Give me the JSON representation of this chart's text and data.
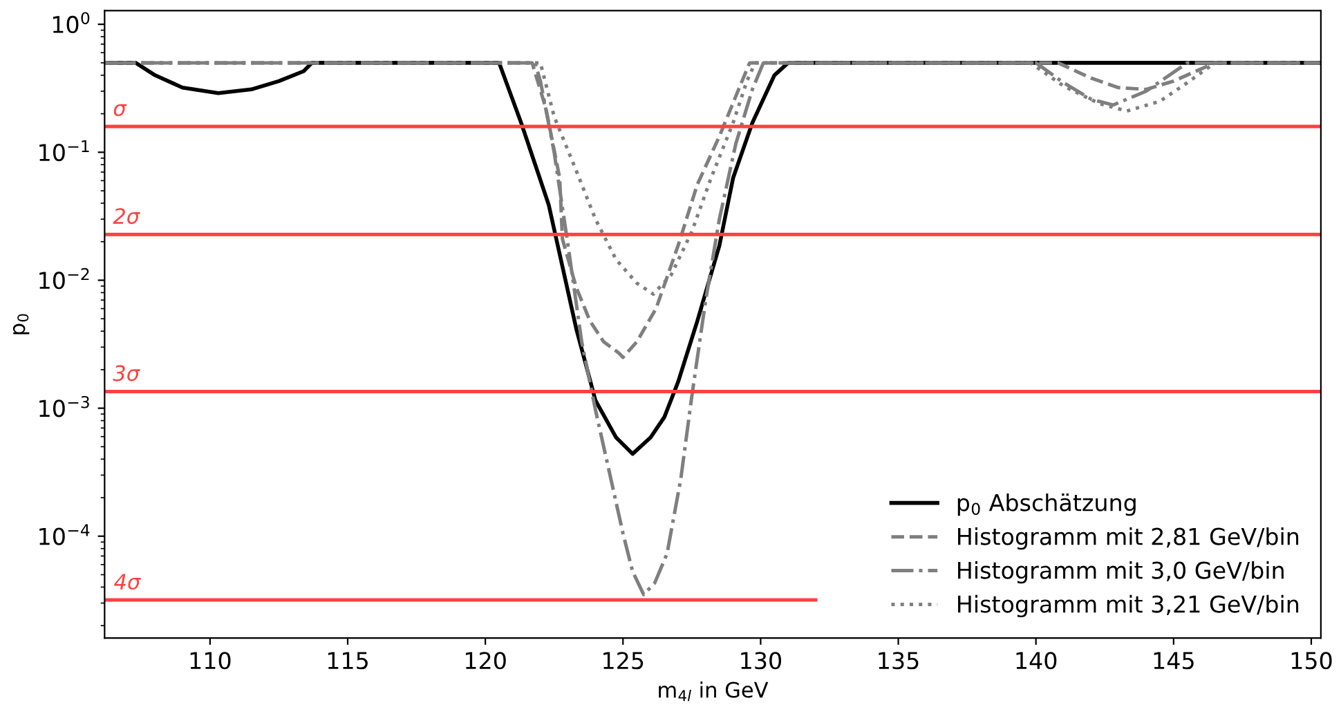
{
  "chart_data": {
    "type": "line",
    "xlabel": "m$_{4l}$ in GeV",
    "ylabel": "p$_{0}$",
    "log": "y",
    "xlim": [
      106.17,
      150.35
    ],
    "ylim": [
      1.6e-05,
      1.28
    ],
    "xticks": [
      110,
      115,
      120,
      125,
      130,
      135,
      140,
      145,
      150
    ],
    "yticks": [
      {
        "value": 1,
        "label": "10$^{0}$"
      },
      {
        "value": 0.1,
        "label": "10$^{−1}$"
      },
      {
        "value": 0.01,
        "label": "10$^{−2}$"
      },
      {
        "value": 0.001,
        "label": "10$^{−3}$"
      },
      {
        "value": 0.0001,
        "label": "10$^{−4}$"
      }
    ],
    "grid": false,
    "legend": "bottom right",
    "ref_lines": [
      {
        "axis": "y",
        "value": 0.159,
        "label": "σ",
        "color": "#ff4040"
      },
      {
        "axis": "y",
        "value": 0.0228,
        "label": "2σ",
        "color": "#ff4040"
      },
      {
        "axis": "y",
        "value": 0.00135,
        "label": "3σ",
        "color": "#ff4040"
      }
    ],
    "annotations": [
      {
        "text": "4σ",
        "x": 106.5,
        "y": 3.17e-05
      }
    ],
    "series": [
      {
        "color": "#ff4040",
        "line_style": "solid",
        "x": [
          106.17,
          132.0
        ],
        "values": [
          3.17e-05,
          3.17e-05
        ]
      },
      {
        "name": "p$_{0}$ Abschätzung",
        "color": "#000000",
        "line_style": "solid",
        "x": [
          106.17,
          107.3,
          108.0,
          109.0,
          110.3,
          111.5,
          112.5,
          113.4,
          113.7,
          120.5,
          121.3,
          122.3,
          123.3,
          124.0,
          124.75,
          125.35,
          126.0,
          126.5,
          127.0,
          127.7,
          128.5,
          129.0,
          129.7,
          130.5,
          131.0,
          150.35
        ],
        "values": [
          0.5,
          0.5,
          0.4,
          0.32,
          0.29,
          0.31,
          0.36,
          0.43,
          0.5,
          0.5,
          0.17,
          0.039,
          0.0042,
          0.00115,
          0.00059,
          0.00044,
          0.00059,
          0.00085,
          0.0016,
          0.0048,
          0.0186,
          0.063,
          0.17,
          0.4,
          0.5,
          0.5
        ]
      },
      {
        "name": "Histogramm mit 2,81 GeV/bin",
        "color": "#7f7f7f",
        "line_style": "dashed",
        "x": [
          106.17,
          121.7,
          122.2,
          122.7,
          122.8,
          123.3,
          123.8,
          124.3,
          124.85,
          125.0,
          125.5,
          126.2,
          127.0,
          127.7,
          128.5,
          129.2,
          129.6,
          140.8,
          142.0,
          143.0,
          144.0,
          145.0,
          146.5,
          150.35
        ],
        "values": [
          0.5,
          0.5,
          0.22,
          0.063,
          0.021,
          0.0088,
          0.0048,
          0.0033,
          0.0027,
          0.0025,
          0.0033,
          0.006,
          0.0186,
          0.056,
          0.133,
          0.31,
          0.5,
          0.5,
          0.38,
          0.32,
          0.31,
          0.36,
          0.5,
          0.5
        ]
      },
      {
        "name": "Histogramm mit 3,0 GeV/bin",
        "color": "#7f7f7f",
        "line_style": "dashdot",
        "x": [
          106.17,
          121.8,
          122.0,
          122.5,
          123.0,
          123.5,
          124.0,
          124.5,
          125.0,
          125.35,
          125.75,
          126.15,
          126.6,
          127.1,
          127.5,
          128.0,
          128.5,
          129.1,
          129.7,
          130.1,
          140.0,
          141.0,
          142.0,
          142.8,
          144.0,
          145.5,
          150.35
        ],
        "values": [
          0.5,
          0.5,
          0.36,
          0.1,
          0.019,
          0.0033,
          0.00097,
          0.00032,
          0.000105,
          5.3e-05,
          3.5e-05,
          4.3e-05,
          7.3e-05,
          0.00028,
          0.00124,
          0.0069,
          0.03,
          0.117,
          0.31,
          0.5,
          0.5,
          0.35,
          0.26,
          0.234,
          0.3,
          0.5,
          0.5
        ]
      },
      {
        "name": "Histogramm mit 3,21 GeV/bin",
        "color": "#7f7f7f",
        "line_style": "dotted",
        "x": [
          106.17,
          122.0,
          122.5,
          123.3,
          124.0,
          124.75,
          125.5,
          126.1,
          126.75,
          127.5,
          128.2,
          129.0,
          129.5,
          129.8,
          139.8,
          141.0,
          142.3,
          143.3,
          144.5,
          145.5,
          146.5,
          150.35
        ],
        "values": [
          0.5,
          0.5,
          0.19,
          0.072,
          0.03,
          0.0145,
          0.0095,
          0.0078,
          0.011,
          0.024,
          0.063,
          0.17,
          0.36,
          0.5,
          0.5,
          0.33,
          0.24,
          0.21,
          0.25,
          0.35,
          0.5,
          0.5
        ]
      }
    ]
  }
}
